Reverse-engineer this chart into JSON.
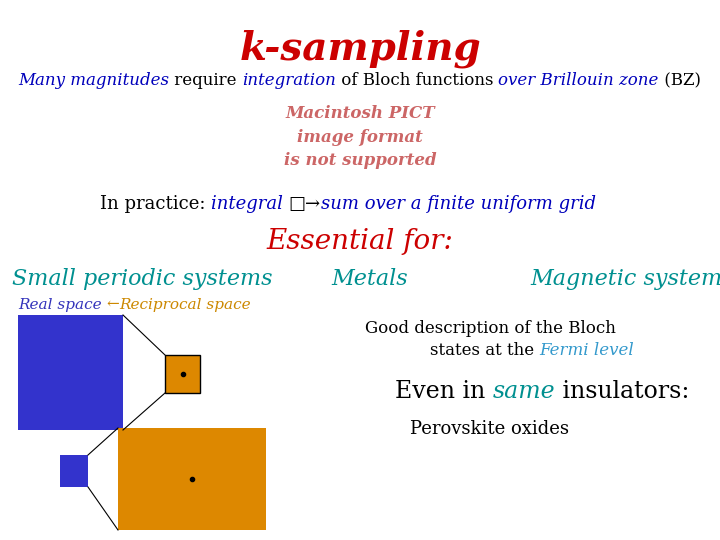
{
  "title": "k-sampling",
  "title_color": "#cc0000",
  "title_fontsize": 28,
  "line1_parts": [
    {
      "text": "Many magnitudes",
      "color": "#0000bb",
      "style": "italic"
    },
    {
      "text": " require ",
      "color": "#000000",
      "style": "normal"
    },
    {
      "text": "integration",
      "color": "#0000bb",
      "style": "italic"
    },
    {
      "text": " of Bloch functions ",
      "color": "#000000",
      "style": "normal"
    },
    {
      "text": "over Brillouin zone",
      "color": "#0000bb",
      "style": "italic"
    },
    {
      "text": " (BZ)",
      "color": "#000000",
      "style": "normal"
    }
  ],
  "line1_fontsize": 12,
  "pict_text": "Macintosh PICT\nimage format\nis not supported",
  "pict_color": "#cc6666",
  "pict_fontsize": 12,
  "practice_parts": [
    {
      "text": "In practice: ",
      "color": "#000000",
      "style": "normal"
    },
    {
      "text": "integral ",
      "color": "#0000bb",
      "style": "italic"
    },
    {
      "text": "□→",
      "color": "#000000",
      "style": "normal"
    },
    {
      "text": "sum over a finite uniform grid",
      "color": "#0000bb",
      "style": "italic"
    }
  ],
  "practice_fontsize": 13,
  "essential_text": "Essential for:",
  "essential_color": "#cc0000",
  "essential_fontsize": 20,
  "col1_text": "Small periodic systems",
  "col2_text": "Metals",
  "col3_text": "Magnetic systems",
  "colheader_color": "#009090",
  "colheader_fontsize": 16,
  "real_space_text": "Real space ",
  "arrow_text": "←",
  "reciprocal_text": "Reciprocal space",
  "real_space_color": "#3333bb",
  "reciprocal_color": "#cc8800",
  "real_fontsize": 11,
  "bloch_text1": "Good description of the Bloch",
  "bloch_text2": "states at the ",
  "fermi_text": "Fermi level",
  "bloch_color": "#000000",
  "fermi_color": "#3399cc",
  "bloch_fontsize": 12,
  "even_text": "Even in ",
  "same_text": "same",
  "insulators_text": " insulators:",
  "even_color": "#000000",
  "same_color": "#009090",
  "insulators_color": "#000000",
  "even_fontsize": 17,
  "perovskite_text": "Perovskite oxides",
  "perovskite_color": "#000000",
  "perovskite_fontsize": 13,
  "bg_color": "#ffffff",
  "blue_color": "#3333cc",
  "orange_color": "#dd8800"
}
